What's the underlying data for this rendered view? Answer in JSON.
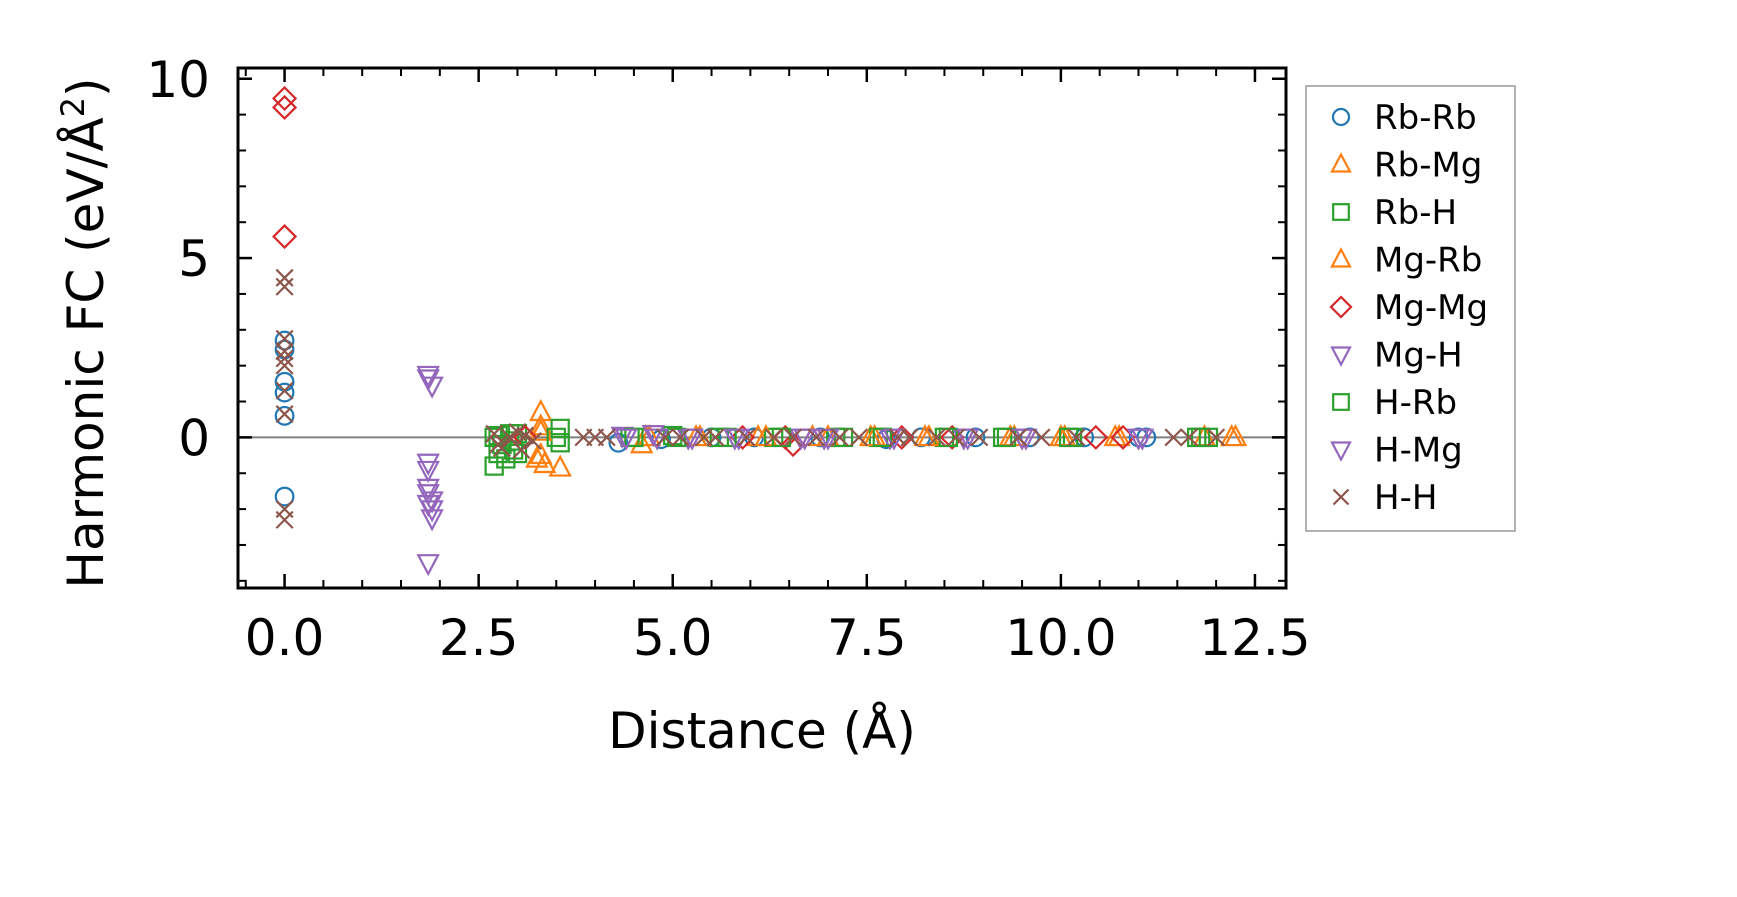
{
  "chart_data": {
    "type": "scatter",
    "title": "",
    "xlabel": "Distance (Å)",
    "ylabel_main": "Harmonic FC (eV/Å",
    "ylabel_sup": "2",
    "ylabel_close": ")",
    "xlim": [
      -0.6,
      12.9
    ],
    "ylim": [
      -4.2,
      10.3
    ],
    "xticks": [
      0.0,
      2.5,
      5.0,
      7.5,
      10.0,
      12.5
    ],
    "xtick_labels": [
      "0.0",
      "2.5",
      "5.0",
      "7.5",
      "10.0",
      "12.5"
    ],
    "yticks": [
      0,
      5,
      10
    ],
    "ytick_labels": [
      "0",
      "5",
      "10"
    ],
    "zero_line": true,
    "legend_position": "right-outside",
    "series": [
      {
        "name": "Rb-Rb",
        "marker": "circle",
        "color": "#1f77b4",
        "points": [
          [
            0,
            2.7
          ],
          [
            0,
            2.45
          ],
          [
            0,
            1.55
          ],
          [
            0,
            1.25
          ],
          [
            0,
            0.6
          ],
          [
            0,
            -1.65
          ],
          [
            4.3,
            -0.15
          ],
          [
            4.85,
            -0.05
          ],
          [
            5.5,
            0.0
          ],
          [
            6.05,
            0.0
          ],
          [
            6.9,
            0.0
          ],
          [
            7.75,
            -0.05
          ],
          [
            8.2,
            0.0
          ],
          [
            8.9,
            0.0
          ],
          [
            9.6,
            0.0
          ],
          [
            10.3,
            0.0
          ],
          [
            11.0,
            0.0
          ],
          [
            11.1,
            0.0
          ]
        ]
      },
      {
        "name": "Rb-Mg",
        "marker": "triangle-up",
        "color": "#ff7f0e",
        "points": [
          [
            3.3,
            0.7
          ],
          [
            3.3,
            0.3
          ],
          [
            3.3,
            -0.5
          ],
          [
            3.35,
            -0.75
          ],
          [
            3.55,
            -0.85
          ],
          [
            4.6,
            -0.2
          ],
          [
            4.65,
            0.0
          ],
          [
            5.3,
            0.0
          ],
          [
            6.1,
            0.0
          ],
          [
            6.8,
            0.0
          ],
          [
            7.55,
            0.0
          ],
          [
            8.25,
            0.0
          ],
          [
            9.35,
            0.0
          ],
          [
            10.05,
            0.0
          ],
          [
            10.7,
            0.0
          ],
          [
            11.85,
            0.0
          ],
          [
            12.25,
            0.0
          ]
        ]
      },
      {
        "name": "Rb-H",
        "marker": "square",
        "color": "#2ca02c",
        "points": [
          [
            2.7,
            0.0
          ],
          [
            2.7,
            -0.8
          ],
          [
            2.75,
            -0.45
          ],
          [
            2.8,
            -0.2
          ],
          [
            2.9,
            0.1
          ],
          [
            2.95,
            -0.35
          ],
          [
            3.0,
            0.1
          ],
          [
            3.55,
            0.25
          ],
          [
            3.55,
            -0.15
          ],
          [
            4.45,
            0.0
          ],
          [
            5.0,
            0.05
          ],
          [
            5.6,
            0.0
          ],
          [
            6.3,
            0.0
          ],
          [
            7.1,
            0.0
          ],
          [
            7.65,
            0.0
          ],
          [
            8.5,
            0.0
          ],
          [
            9.25,
            0.0
          ],
          [
            10.15,
            0.0
          ],
          [
            11.8,
            0.0
          ],
          [
            11.9,
            0.0
          ]
        ]
      },
      {
        "name": "Mg-Rb",
        "marker": "triangle-up",
        "color": "#ff7f0e",
        "points": [
          [
            3.25,
            -0.6
          ],
          [
            3.3,
            0.15
          ],
          [
            4.7,
            0.0
          ],
          [
            5.35,
            0.0
          ],
          [
            6.2,
            0.0
          ],
          [
            7.0,
            0.0
          ],
          [
            7.6,
            0.0
          ],
          [
            8.3,
            0.0
          ],
          [
            9.4,
            0.0
          ],
          [
            10.0,
            0.0
          ],
          [
            10.75,
            0.0
          ],
          [
            12.2,
            0.0
          ]
        ]
      },
      {
        "name": "Mg-Mg",
        "marker": "diamond",
        "color": "#d62728",
        "points": [
          [
            0,
            9.45
          ],
          [
            0,
            9.2
          ],
          [
            0,
            5.6
          ],
          [
            3.1,
            0.0
          ],
          [
            5.9,
            0.0
          ],
          [
            6.45,
            0.0
          ],
          [
            6.55,
            -0.2
          ],
          [
            7.95,
            0.0
          ],
          [
            8.6,
            0.0
          ],
          [
            10.45,
            0.0
          ],
          [
            10.8,
            0.0
          ]
        ]
      },
      {
        "name": "Mg-H",
        "marker": "triangle-down",
        "color": "#9467bd",
        "points": [
          [
            1.85,
            1.75
          ],
          [
            1.85,
            1.65
          ],
          [
            1.9,
            1.45
          ],
          [
            1.85,
            -0.7
          ],
          [
            1.85,
            -1.4
          ],
          [
            1.85,
            -1.55
          ],
          [
            1.85,
            -1.85
          ],
          [
            1.9,
            -2.0
          ],
          [
            1.9,
            -2.25
          ],
          [
            1.85,
            -3.5
          ],
          [
            4.35,
            0.05
          ],
          [
            4.75,
            0.1
          ],
          [
            5.2,
            0.0
          ],
          [
            5.85,
            0.0
          ],
          [
            6.65,
            0.0
          ],
          [
            6.95,
            0.0
          ],
          [
            7.8,
            0.0
          ],
          [
            8.75,
            0.0
          ],
          [
            9.55,
            0.0
          ],
          [
            11.05,
            0.0
          ]
        ]
      },
      {
        "name": "H-Rb",
        "marker": "square",
        "color": "#2ca02c",
        "points": [
          [
            2.75,
            0.05
          ],
          [
            2.85,
            -0.6
          ],
          [
            2.95,
            -0.1
          ],
          [
            3.0,
            -0.45
          ],
          [
            3.5,
            0.0
          ],
          [
            4.5,
            0.0
          ],
          [
            5.05,
            0.0
          ],
          [
            5.7,
            0.0
          ],
          [
            6.4,
            0.0
          ],
          [
            7.2,
            0.0
          ],
          [
            7.7,
            0.0
          ],
          [
            8.55,
            0.0
          ],
          [
            9.3,
            0.0
          ],
          [
            10.1,
            0.0
          ],
          [
            11.75,
            0.0
          ]
        ]
      },
      {
        "name": "H-Mg",
        "marker": "triangle-down",
        "color": "#9467bd",
        "points": [
          [
            1.9,
            -1.75
          ],
          [
            1.85,
            -0.9
          ],
          [
            4.4,
            0.0
          ],
          [
            4.8,
            0.0
          ],
          [
            5.25,
            0.0
          ],
          [
            5.8,
            0.0
          ],
          [
            6.7,
            0.0
          ],
          [
            7.0,
            0.0
          ],
          [
            7.85,
            0.0
          ],
          [
            8.8,
            0.0
          ],
          [
            9.5,
            0.0
          ],
          [
            11.0,
            0.0
          ]
        ]
      },
      {
        "name": "H-H",
        "marker": "x",
        "color": "#8c564b",
        "points": [
          [
            0,
            4.45
          ],
          [
            0,
            4.2
          ],
          [
            0,
            2.75
          ],
          [
            0,
            2.4
          ],
          [
            0,
            2.2
          ],
          [
            0,
            2.0
          ],
          [
            0,
            1.3
          ],
          [
            0,
            0.65
          ],
          [
            0,
            -2.0
          ],
          [
            0,
            -2.3
          ],
          [
            2.7,
            0.1
          ],
          [
            2.75,
            -0.2
          ],
          [
            2.8,
            -0.3
          ],
          [
            2.9,
            0.0
          ],
          [
            3.0,
            0.15
          ],
          [
            3.05,
            -0.35
          ],
          [
            3.1,
            0.05
          ],
          [
            3.2,
            -0.1
          ],
          [
            3.85,
            0.0
          ],
          [
            4.0,
            0.0
          ],
          [
            4.15,
            0.0
          ],
          [
            4.9,
            0.0
          ],
          [
            5.1,
            0.0
          ],
          [
            5.4,
            0.0
          ],
          [
            5.55,
            0.0
          ],
          [
            5.95,
            0.0
          ],
          [
            6.3,
            0.0
          ],
          [
            6.55,
            0.0
          ],
          [
            6.85,
            0.0
          ],
          [
            7.15,
            0.0
          ],
          [
            7.4,
            0.0
          ],
          [
            7.9,
            0.0
          ],
          [
            8.05,
            0.0
          ],
          [
            8.4,
            0.0
          ],
          [
            8.65,
            0.0
          ],
          [
            8.95,
            0.0
          ],
          [
            9.45,
            0.0
          ],
          [
            9.75,
            0.0
          ],
          [
            10.2,
            0.0
          ],
          [
            11.45,
            0.0
          ],
          [
            11.65,
            0.0
          ],
          [
            12.0,
            0.0
          ]
        ]
      }
    ]
  }
}
